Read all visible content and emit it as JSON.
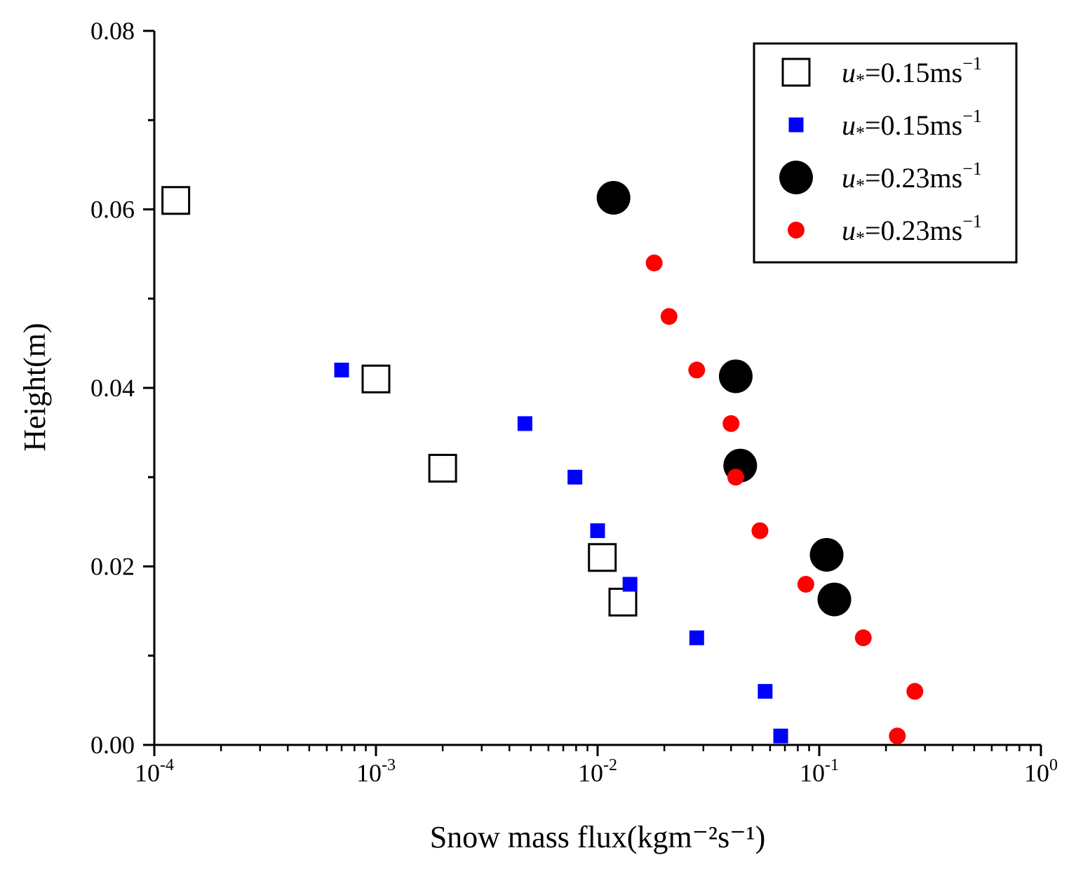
{
  "chart_data": {
    "type": "scatter",
    "title": "",
    "xlabel": "Snow mass flux(kgm⁻²s⁻¹)",
    "ylabel": "Height(m)",
    "xscale": "log",
    "xlim": [
      0.0001,
      1
    ],
    "ylim": [
      0,
      0.08
    ],
    "x_ticks": [
      {
        "base": "10",
        "exp": "-4"
      },
      {
        "base": "10",
        "exp": "-3"
      },
      {
        "base": "10",
        "exp": "-2"
      },
      {
        "base": "10",
        "exp": "-1"
      },
      {
        "base": "10",
        "exp": "0"
      }
    ],
    "y_ticks": [
      "0.00",
      "0.02",
      "0.04",
      "0.06",
      "0.08"
    ],
    "legend_position": "top-right",
    "series": [
      {
        "name": "u*=0.15ms⁻¹",
        "legend_prefix": "u",
        "legend_sub": "*",
        "legend_suffix": "=0.15ms",
        "legend_exp": "−1",
        "marker": "open-square",
        "color": "#000000",
        "points": [
          [
            0.000125,
            0.061
          ],
          [
            0.001,
            0.041
          ],
          [
            0.002,
            0.031
          ],
          [
            0.0105,
            0.021
          ],
          [
            0.013,
            0.016
          ]
        ]
      },
      {
        "name": "u*=0.15ms⁻¹",
        "legend_prefix": "u",
        "legend_sub": "*",
        "legend_suffix": "=0.15ms",
        "legend_exp": "−1",
        "marker": "filled-square",
        "color": "#0000ff",
        "points": [
          [
            0.0007,
            0.042
          ],
          [
            0.0047,
            0.036
          ],
          [
            0.0079,
            0.03
          ],
          [
            0.01,
            0.024
          ],
          [
            0.014,
            0.018
          ],
          [
            0.028,
            0.012
          ],
          [
            0.057,
            0.006
          ],
          [
            0.067,
            0.001
          ]
        ]
      },
      {
        "name": "u*=0.23ms⁻¹",
        "legend_prefix": "u",
        "legend_sub": "*",
        "legend_suffix": "=0.23ms",
        "legend_exp": "−1",
        "marker": "filled-circle-large",
        "color": "#000000",
        "points": [
          [
            0.0118,
            0.0613
          ],
          [
            0.042,
            0.0413
          ],
          [
            0.044,
            0.0313
          ],
          [
            0.108,
            0.0213
          ],
          [
            0.117,
            0.0163
          ]
        ]
      },
      {
        "name": "u*=0.23ms⁻¹",
        "legend_prefix": "u",
        "legend_sub": "*",
        "legend_suffix": "=0.23ms",
        "legend_exp": "−1",
        "marker": "filled-circle",
        "color": "#ff0000",
        "points": [
          [
            0.018,
            0.054
          ],
          [
            0.021,
            0.048
          ],
          [
            0.028,
            0.042
          ],
          [
            0.04,
            0.036
          ],
          [
            0.042,
            0.03
          ],
          [
            0.054,
            0.024
          ],
          [
            0.087,
            0.018
          ],
          [
            0.158,
            0.012
          ],
          [
            0.27,
            0.006
          ],
          [
            0.225,
            0.001
          ]
        ]
      }
    ]
  }
}
